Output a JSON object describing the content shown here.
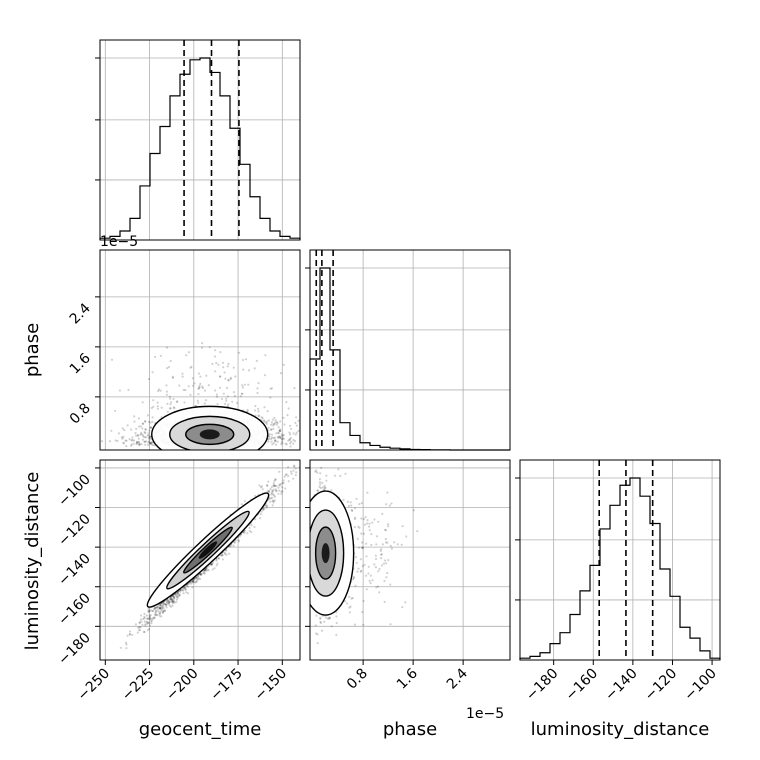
{
  "chart_data": {
    "type": "corner",
    "parameters": [
      "geocent_time",
      "phase",
      "luminosity_distance"
    ],
    "labels": {
      "geocent_time": "geocent_time",
      "phase": "phase",
      "luminosity_distance": "luminosity_distance"
    },
    "offset_texts": {
      "phase_y": "1e−5",
      "phase_x": "1e−5"
    },
    "ranges": {
      "geocent_time": [
        -253,
        -140
      ],
      "phase": [
        -0.05,
        3.15
      ],
      "luminosity_distance": [
        -197,
        -96
      ]
    },
    "ticks": {
      "geocent_time": {
        "values": [
          -250,
          -225,
          -200,
          -175,
          -150
        ],
        "labels": [
          "−250",
          "−225",
          "−200",
          "−175",
          "−150"
        ]
      },
      "phase_x": {
        "values": [
          0.8,
          1.6,
          2.4
        ],
        "labels": [
          "0.8",
          "1.6",
          "2.4"
        ]
      },
      "phase_y": {
        "values": [
          0.8,
          1.6,
          2.4
        ],
        "labels": [
          "0.8",
          "1.6",
          "2.4"
        ]
      },
      "luminosity_distance_y": {
        "values": [
          -180,
          -160,
          -140,
          -120,
          -100
        ],
        "labels": [
          "−180",
          "−160",
          "−140",
          "−120",
          "−100"
        ]
      },
      "luminosity_distance_x": {
        "values": [
          -180,
          -160,
          -140,
          -120,
          -100
        ],
        "labels": [
          "−180",
          "−160",
          "−140",
          "−120",
          "−100"
        ]
      }
    },
    "histograms": {
      "geocent_time": {
        "bins": [
          -253,
          -247.35,
          -241.7,
          -236.05,
          -230.4,
          -224.75,
          -219.1,
          -213.45,
          -207.8,
          -202.15,
          -196.5,
          -190.85,
          -185.2,
          -179.55,
          -173.9,
          -168.25,
          -162.6,
          -156.95,
          -151.3,
          -145.65,
          -140
        ],
        "counts": [
          1,
          2,
          5,
          12,
          30,
          48,
          63,
          80,
          92,
          100,
          101,
          93,
          80,
          62,
          42,
          24,
          12,
          5,
          2,
          1
        ],
        "quantiles": [
          -205.5,
          -190,
          -174.5
        ]
      },
      "phase": {
        "bins": [
          -0.05,
          0.11,
          0.27,
          0.43,
          0.59,
          0.75,
          0.91,
          1.07,
          1.23,
          1.39,
          1.55,
          1.71,
          1.87,
          2.03,
          2.19,
          2.35,
          2.51,
          2.67,
          2.83,
          2.99,
          3.15
        ],
        "counts": [
          50,
          100,
          55,
          15,
          8,
          4,
          2.5,
          1.5,
          1,
          0.6,
          0.3,
          0.2,
          0.1,
          0.1,
          0,
          0,
          0,
          0,
          0,
          0
        ],
        "quantiles": [
          0.05,
          0.14,
          0.32
        ]
      },
      "luminosity_distance": {
        "bins": [
          -197,
          -191.95,
          -186.9,
          -181.85,
          -176.8,
          -171.75,
          -166.7,
          -161.65,
          -156.6,
          -151.55,
          -146.5,
          -141.45,
          -136.4,
          -131.35,
          -126.3,
          -121.25,
          -116.2,
          -111.15,
          -106.1,
          -101.05,
          -96
        ],
        "counts": [
          1,
          2,
          4,
          9,
          15,
          25,
          38,
          52,
          72,
          85,
          96,
          100,
          90,
          75,
          50,
          35,
          18,
          12,
          5,
          1
        ],
        "quantiles": [
          -157,
          -143.5,
          -130
        ]
      }
    },
    "correlations": {
      "geocent_time_vs_phase": {
        "center": [
          -191,
          0.2
        ],
        "spread": [
          20,
          0.18
        ]
      },
      "geocent_time_vs_luminosity_distance": {
        "center": [
          -190,
          -143
        ],
        "slope": 0.9
      },
      "phase_vs_luminosity_distance": {
        "center": [
          0.2,
          -143
        ],
        "spread": [
          0.15,
          14
        ]
      }
    }
  }
}
